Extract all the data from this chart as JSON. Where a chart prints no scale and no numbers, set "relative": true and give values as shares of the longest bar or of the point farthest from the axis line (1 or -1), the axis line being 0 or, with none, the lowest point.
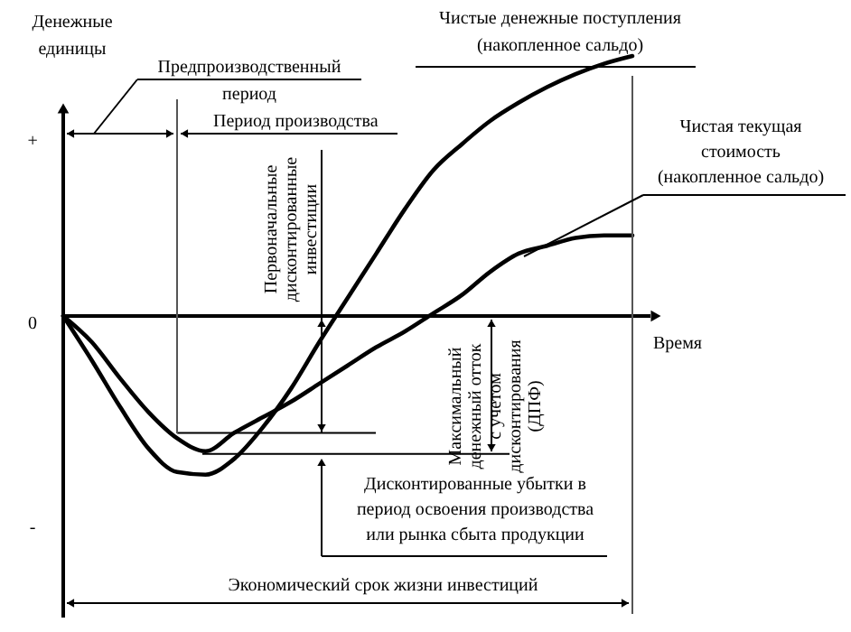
{
  "chart_data": {
    "type": "line",
    "relative": true,
    "line_style": "solid",
    "ylabel": "Денежные единицы",
    "xlabel": "Время",
    "categories": [
      null,
      null,
      null,
      null,
      null,
      null,
      null,
      null,
      null,
      null,
      null,
      null,
      null,
      null,
      null,
      null,
      null,
      null,
      null,
      null,
      null
    ],
    "series": [
      {
        "name": "Чистые денежные поступления (накопленное сальдо)",
        "color": "#000000",
        "values": [
          0,
          -0.17,
          -0.35,
          -0.51,
          -0.6,
          -0.61,
          -0.55,
          -0.43,
          -0.28,
          -0.1,
          0.07,
          0.24,
          0.41,
          0.56,
          0.66,
          0.75,
          0.82,
          0.88,
          0.93,
          0.97,
          1.0
        ]
      },
      {
        "name": "Чистая текущая стоимость (накопленное сальдо)",
        "color": "#000000",
        "values": [
          0,
          -0.1,
          -0.24,
          -0.37,
          -0.47,
          -0.52,
          -0.45,
          -0.39,
          -0.33,
          -0.26,
          -0.19,
          -0.12,
          -0.06,
          0.01,
          0.08,
          0.17,
          0.24,
          0.27,
          0.3,
          0.31,
          0.31
        ]
      }
    ],
    "ref_lines": [
      {
        "axis": "y",
        "value": -0.45
      },
      {
        "axis": "y",
        "value": -0.53
      }
    ],
    "annotations": [
      "+",
      "0",
      "-",
      "Предпроизводственный период",
      "Период производства",
      "Первоначальные дисконтированные инвестиции",
      "Максимальный денежный отток с учетом дисконтирования (ДПФ)",
      "Дисконтированные убытки в период освоения производства или рынка сбыта продукции",
      "Экономический срок жизни инвестиций"
    ]
  }
}
